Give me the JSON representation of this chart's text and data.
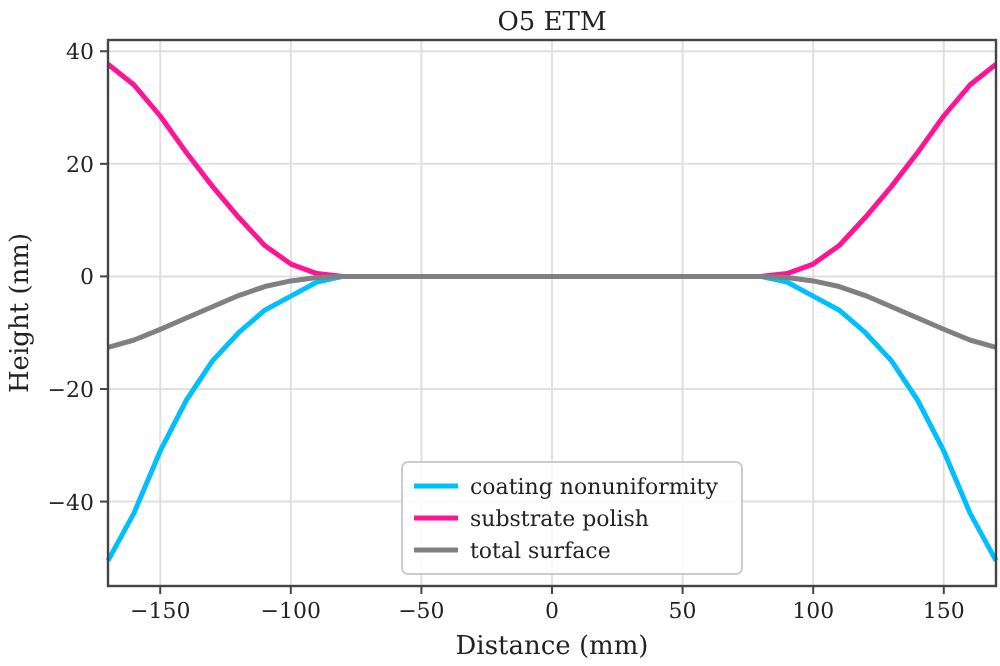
{
  "chart_data": {
    "type": "line",
    "title": "O5 ETM",
    "xlabel": "Distance (mm)",
    "ylabel": "Height (nm)",
    "x": [
      -170,
      -160,
      -150,
      -140,
      -130,
      -120,
      -110,
      -100,
      -90,
      -80,
      0,
      80,
      90,
      100,
      110,
      120,
      130,
      140,
      150,
      160,
      170
    ],
    "series": [
      {
        "name": "coating nonuniformity",
        "color": "#00bfff",
        "values": [
          -50.5,
          -42,
          -31,
          -22,
          -15,
          -10,
          -6,
          -3.5,
          -1,
          0,
          0,
          0,
          -1,
          -3.5,
          -6,
          -10,
          -15,
          -22,
          -31,
          -42,
          -50.5
        ]
      },
      {
        "name": "substrate polish",
        "color": "#ff1493",
        "values": [
          37.7,
          34,
          28.5,
          22,
          16,
          10.5,
          5.5,
          2.2,
          0.5,
          0,
          0,
          0,
          0.5,
          2.2,
          5.5,
          10.5,
          16,
          22,
          28.5,
          34,
          37.7
        ]
      },
      {
        "name": "total surface",
        "color": "#808080",
        "values": [
          -12.6,
          -11.3,
          -9.4,
          -7.4,
          -5.4,
          -3.4,
          -1.8,
          -0.8,
          -0.2,
          0,
          0,
          0,
          -0.2,
          -0.8,
          -1.8,
          -3.4,
          -5.4,
          -7.4,
          -9.4,
          -11.3,
          -12.6
        ]
      }
    ],
    "xlim": [
      -170,
      170
    ],
    "xticks": [
      -150,
      -100,
      -50,
      0,
      50,
      100,
      150
    ],
    "ylim": [
      -55,
      42
    ],
    "yticks": [
      -40,
      -20,
      0,
      20,
      40
    ],
    "grid": true,
    "legend": "bottom",
    "line_style": "solid",
    "marker": "none"
  }
}
